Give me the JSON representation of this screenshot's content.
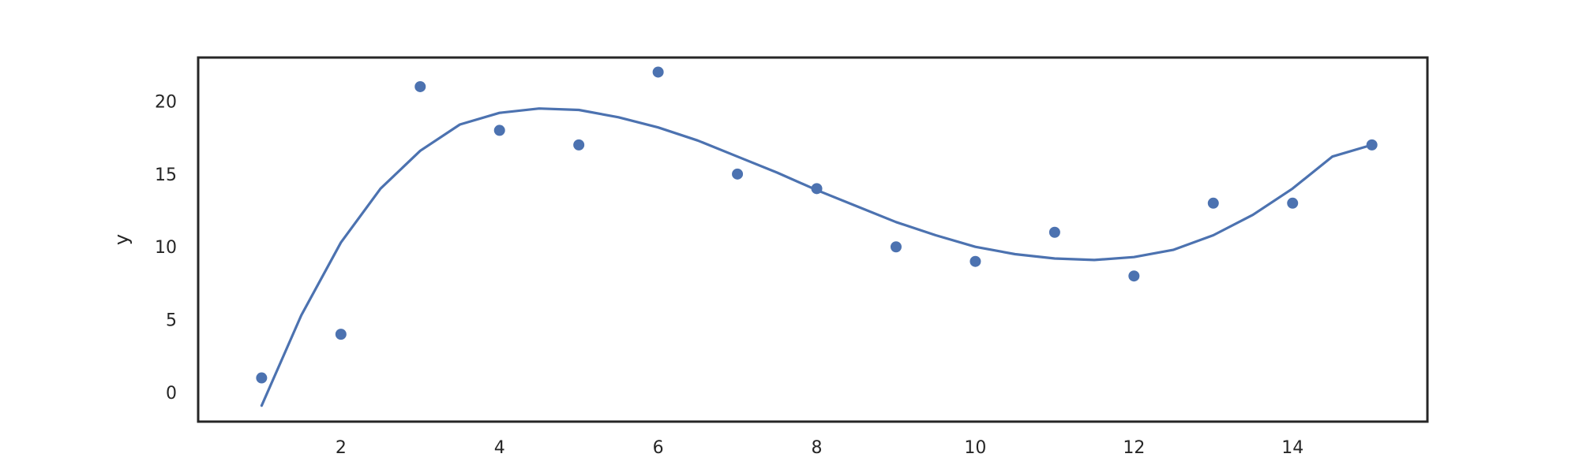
{
  "chart_data": {
    "type": "scatter",
    "title": "",
    "xlabel": "",
    "ylabel": "y",
    "xlim": [
      0.2,
      15.7
    ],
    "ylim": [
      -2.0,
      23.0
    ],
    "xticks": [
      2,
      4,
      6,
      8,
      10,
      12,
      14
    ],
    "yticks": [
      0,
      5,
      10,
      15,
      20
    ],
    "grid": false,
    "legend": "none",
    "colors": {
      "series": "#4c72b0",
      "frame": "#262626"
    },
    "series": [
      {
        "kind": "scatter",
        "x": [
          1,
          2,
          3,
          4,
          5,
          6,
          7,
          8,
          9,
          10,
          11,
          12,
          13,
          14,
          15
        ],
        "y": [
          1,
          4,
          21,
          18,
          17,
          22,
          15,
          14,
          10,
          9,
          11,
          8,
          13,
          13,
          17
        ]
      },
      {
        "kind": "line",
        "x": [
          1,
          1.5,
          2,
          2.5,
          3,
          3.5,
          4,
          4.5,
          5,
          5.5,
          6,
          6.5,
          7,
          7.5,
          8,
          8.5,
          9,
          9.5,
          10,
          10.5,
          11,
          11.5,
          12,
          12.5,
          13,
          13.5,
          14,
          14.5,
          15
        ],
        "y": [
          -0.9,
          5.3,
          10.3,
          14.0,
          16.6,
          18.4,
          19.2,
          19.5,
          19.4,
          18.9,
          18.2,
          17.3,
          16.2,
          15.1,
          13.9,
          12.8,
          11.7,
          10.8,
          10.0,
          9.5,
          9.2,
          9.1,
          9.3,
          9.8,
          10.8,
          12.2,
          14.0,
          16.2,
          17.0
        ]
      }
    ]
  }
}
